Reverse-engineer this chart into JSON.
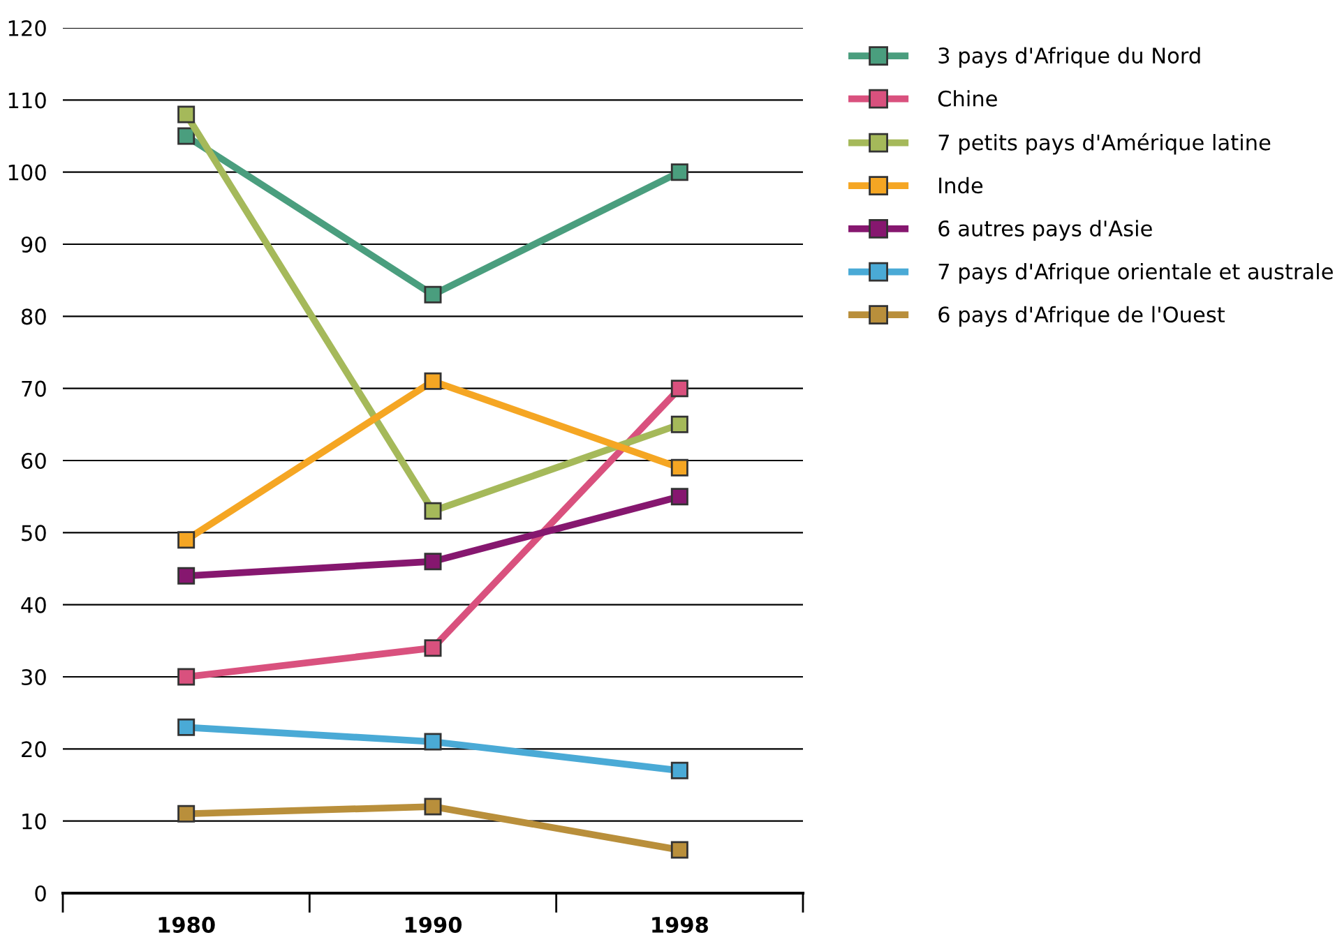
{
  "chart_data": {
    "type": "line",
    "categories": [
      "1980",
      "1990",
      "1998"
    ],
    "ylim": [
      0,
      120
    ],
    "yticks": [
      0,
      10,
      20,
      30,
      40,
      50,
      60,
      70,
      80,
      90,
      100,
      110,
      120
    ],
    "grid": "y",
    "legend": "top right",
    "marker": "square",
    "line_style": "solid",
    "series": [
      {
        "name": "3 pays d'Afrique du Nord",
        "color": "#4a9e7e",
        "values": [
          105,
          83,
          100
        ]
      },
      {
        "name": "Chine",
        "color": "#d9517e",
        "values": [
          30,
          34,
          70
        ]
      },
      {
        "name": "7 petits pays d'Amérique latine",
        "color": "#a5b95a",
        "values": [
          108,
          53,
          65
        ]
      },
      {
        "name": "Inde",
        "color": "#f5a623",
        "values": [
          49,
          71,
          59
        ]
      },
      {
        "name": "6 autres pays d'Asie",
        "color": "#86176f",
        "values": [
          44,
          46,
          55
        ]
      },
      {
        "name": "7 pays d'Afrique orientale et australe",
        "color": "#4aaad6",
        "values": [
          23,
          21,
          17
        ]
      },
      {
        "name": "6 pays d'Afrique de l'Ouest",
        "color": "#b98f3b",
        "values": [
          11,
          12,
          6
        ]
      }
    ]
  }
}
